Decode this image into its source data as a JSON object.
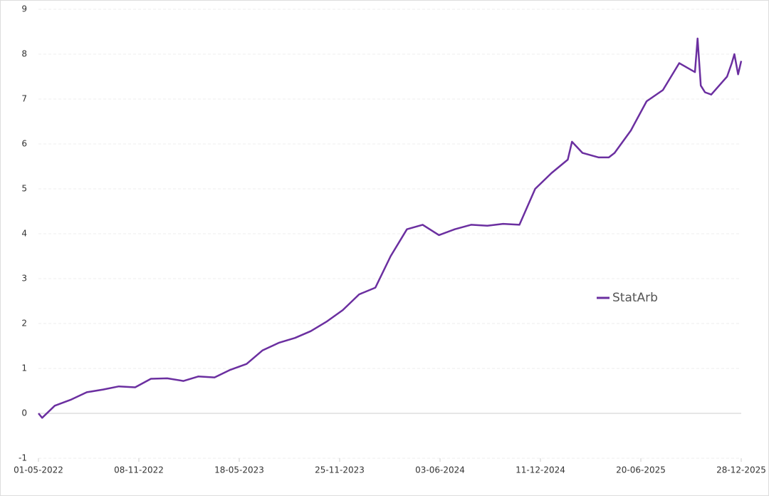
{
  "chart_data": {
    "type": "line",
    "x": [
      "01-05-2022",
      "08-05-2022",
      "01-06-2022",
      "01-07-2022",
      "01-08-2022",
      "01-09-2022",
      "01-10-2022",
      "01-11-2022",
      "01-12-2022",
      "01-01-2023",
      "01-02-2023",
      "01-03-2023",
      "01-04-2023",
      "01-05-2023",
      "01-06-2023",
      "01-07-2023",
      "01-08-2023",
      "01-09-2023",
      "01-10-2023",
      "01-11-2023",
      "01-12-2023",
      "01-01-2024",
      "01-02-2024",
      "01-03-2024",
      "01-04-2024",
      "01-05-2024",
      "01-06-2024",
      "01-07-2024",
      "01-08-2024",
      "01-09-2024",
      "01-10-2024",
      "01-11-2024",
      "01-12-2024",
      "01-01-2025",
      "01-02-2025",
      "09-02-2025",
      "01-03-2025",
      "01-04-2025",
      "20-04-2025",
      "01-05-2025",
      "01-06-2025",
      "01-07-2025",
      "01-08-2025",
      "01-09-2025",
      "01-10-2025",
      "06-10-2025",
      "12-10-2025",
      "20-10-2025",
      "01-11-2025",
      "01-12-2025",
      "10-12-2025",
      "15-12-2025",
      "22-12-2025",
      "28-12-2025"
    ],
    "series": [
      {
        "name": "StatArb",
        "color": "#6b2fa0",
        "values": [
          0,
          -0.1,
          0.17,
          0.3,
          0.47,
          0.53,
          0.6,
          0.58,
          0.77,
          0.78,
          0.72,
          0.82,
          0.8,
          0.97,
          1.1,
          1.4,
          1.57,
          1.68,
          1.83,
          2.05,
          2.3,
          2.65,
          2.8,
          3.5,
          4.1,
          4.2,
          3.97,
          4.1,
          4.2,
          4.18,
          4.22,
          4.2,
          5.0,
          5.35,
          5.65,
          6.05,
          5.8,
          5.7,
          5.7,
          5.8,
          6.3,
          6.95,
          7.2,
          7.8,
          7.6,
          8.35,
          7.3,
          7.15,
          7.1,
          7.5,
          7.8,
          8.0,
          7.55,
          7.85
        ]
      }
    ],
    "xlim": [
      "01-05-2022",
      "28-12-2025"
    ],
    "xticks": [
      "01-05-2022",
      "08-11-2022",
      "18-05-2023",
      "25-11-2023",
      "03-06-2024",
      "11-12-2024",
      "20-06-2025",
      "28-12-2025"
    ],
    "ylim": [
      -1,
      9
    ],
    "yticks": [
      -1,
      0,
      1,
      2,
      3,
      4,
      5,
      6,
      7,
      8,
      9
    ],
    "grid": true,
    "legend": "right"
  }
}
